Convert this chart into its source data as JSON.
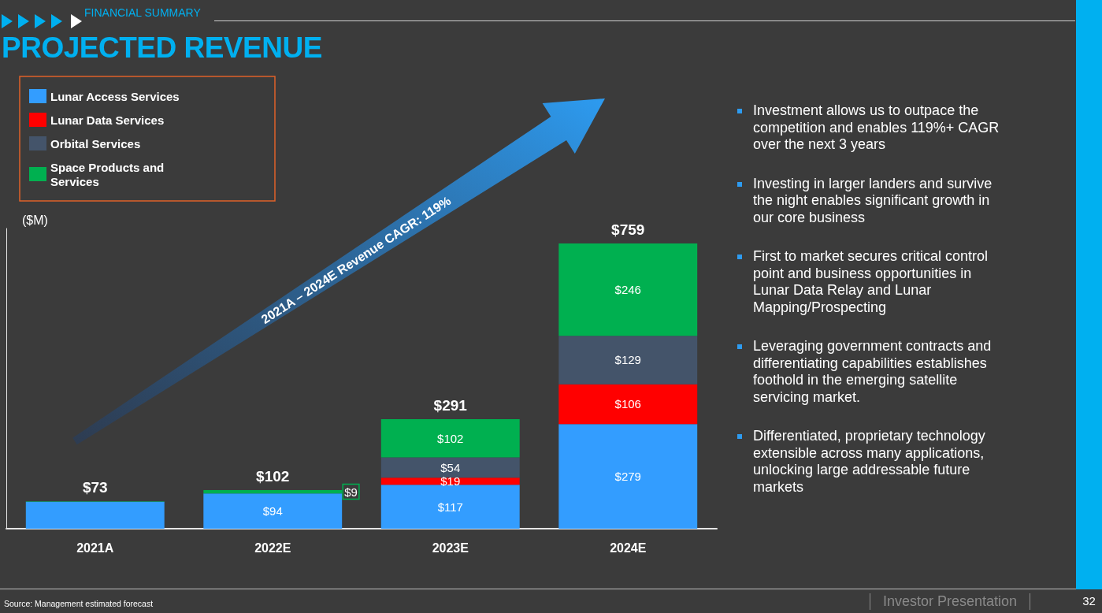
{
  "chart_data": {
    "type": "bar",
    "title": "PROJECTED REVENUE",
    "subtitle": "FINANCIAL SUMMARY",
    "ylabel": "($M)",
    "categories": [
      "2021A",
      "2022E",
      "2023E",
      "2024E"
    ],
    "stacked": true,
    "legend": "top left",
    "tick_labels": "x",
    "series": [
      {
        "name": "Lunar Access Services",
        "color": "#339dff",
        "values": [
          72,
          94,
          117,
          279
        ],
        "value_labels": [
          null,
          "$94",
          "$117",
          "$279"
        ]
      },
      {
        "name": "Lunar Data Services",
        "color": "#ff0000",
        "values": [
          null,
          null,
          19,
          106
        ],
        "value_labels": [
          null,
          null,
          "$19",
          "$106"
        ]
      },
      {
        "name": "Orbital Services",
        "color": "#44546a",
        "values": [
          null,
          null,
          54,
          129
        ],
        "value_labels": [
          null,
          null,
          "$54",
          "$129"
        ]
      },
      {
        "name": "Space Products and Services",
        "color": "#00b050",
        "values": [
          1,
          9,
          102,
          246
        ],
        "value_labels": [
          null,
          "$9",
          "$102",
          "$246"
        ]
      }
    ],
    "totals": [
      "$73",
      "$102",
      "$291",
      "$759"
    ],
    "annotations": [
      "2021A – 2024E Revenue CAGR: 119%",
      "Investment allows us to outpace the competition and enables 119%+ CAGR over the next 3 years",
      "Investing in larger landers and survive the night enables significant growth in our core business",
      "First to market secures critical control point and business opportunities in Lunar Data Relay and Lunar Mapping/Prospecting",
      "Leveraging government contracts and differentiating capabilities establishes foothold in the emerging satellite servicing market.",
      "Differentiated, proprietary technology extensible across many applications, unlocking large addressable future markets",
      "Source: Management estimated forecast",
      "Investor Presentation",
      "32"
    ]
  }
}
